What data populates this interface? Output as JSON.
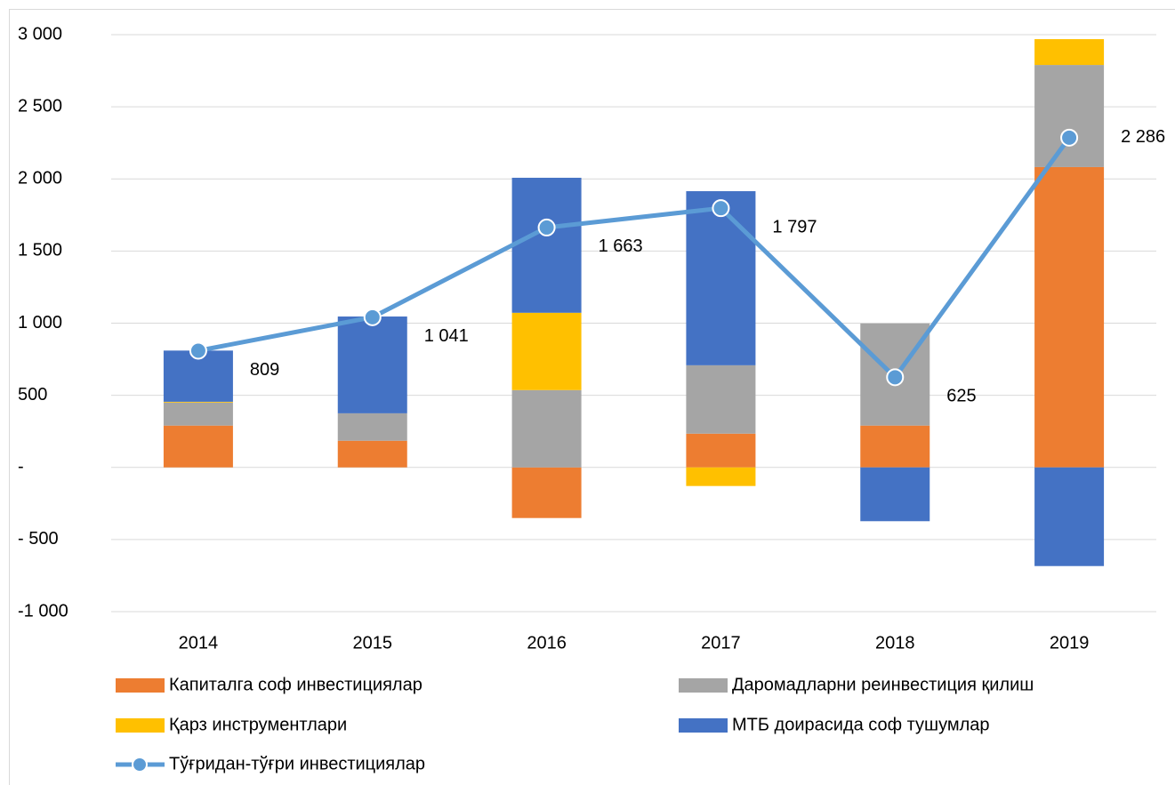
{
  "chart_data": {
    "type": "bar",
    "categories": [
      "2014",
      "2015",
      "2016",
      "2017",
      "2018",
      "2019"
    ],
    "series": [
      {
        "name": "Капиталга соф инвестициялар",
        "color": "#ed7d31",
        "values": [
          290,
          185,
          -351,
          234,
          290,
          2082
        ]
      },
      {
        "name": "Даромадларни реинвестиция қилиш",
        "color": "#a5a5a5",
        "values": [
          160,
          190,
          536,
          474,
          708,
          708
        ]
      },
      {
        "name": "Қарз инструментлари",
        "color": "#ffc000",
        "values": [
          5,
          0,
          536,
          -129,
          0,
          179
        ]
      },
      {
        "name": "МТБ доирасида соф тушумлар",
        "color": "#4472c4",
        "values": [
          355,
          671,
          936,
          1207,
          -373,
          -684
        ]
      },
      {
        "name": "Тўғридан-тўғри инвестициялар",
        "color": "#5b9bd5",
        "type": "line",
        "values": [
          809,
          1041,
          1663,
          1797,
          625,
          2286
        ],
        "value_labels": [
          "809",
          "1 041",
          "1 663",
          "1 797",
          "625",
          "2 286"
        ]
      }
    ],
    "ylim": [
      -1000,
      3000
    ],
    "yticks": [
      {
        "value": -1000,
        "label": "-1 000"
      },
      {
        "value": -500,
        "label": "- 500"
      },
      {
        "value": 0,
        "label": "-"
      },
      500,
      {
        "value": 1000,
        "label": "1 000"
      },
      {
        "value": 1500,
        "label": "1 500"
      },
      {
        "value": 2000,
        "label": "2 000"
      },
      {
        "value": 2500,
        "label": "2 500"
      },
      {
        "value": 3000,
        "label": "3 000"
      }
    ],
    "grid": true
  }
}
